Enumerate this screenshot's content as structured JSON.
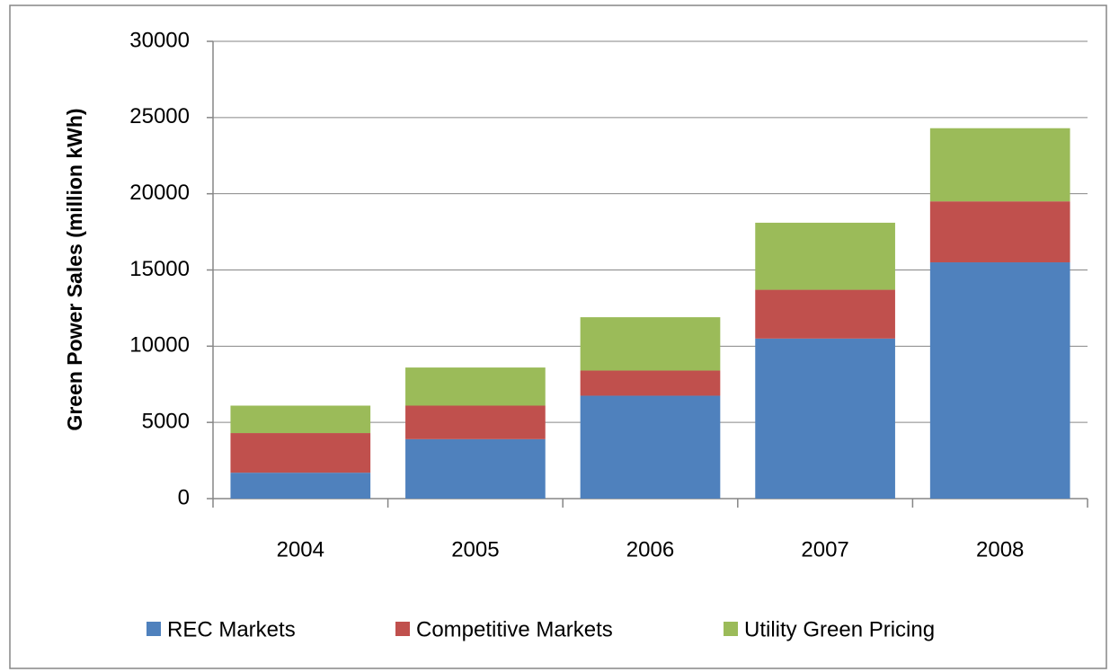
{
  "chart_data": {
    "type": "stacked_bar",
    "y_label": "Green Power Sales  (million kWh)",
    "categories": [
      "2004",
      "2005",
      "2006",
      "2007",
      "2008"
    ],
    "series": [
      {
        "name": "REC Markets",
        "color": "#4f81bd",
        "values": [
          1700,
          3900,
          6750,
          10500,
          15500
        ]
      },
      {
        "name": "Competitive Markets",
        "color": "#c0504d",
        "values": [
          2600,
          2200,
          1650,
          3200,
          4000
        ]
      },
      {
        "name": "Utility Green Pricing",
        "color": "#9bbb59",
        "values": [
          1800,
          2500,
          3500,
          4400,
          4800
        ]
      }
    ],
    "ylim": [
      0,
      30000
    ],
    "yticks": [
      0,
      5000,
      10000,
      15000,
      20000,
      25000,
      30000
    ],
    "grid": true,
    "legend": "bottom"
  }
}
